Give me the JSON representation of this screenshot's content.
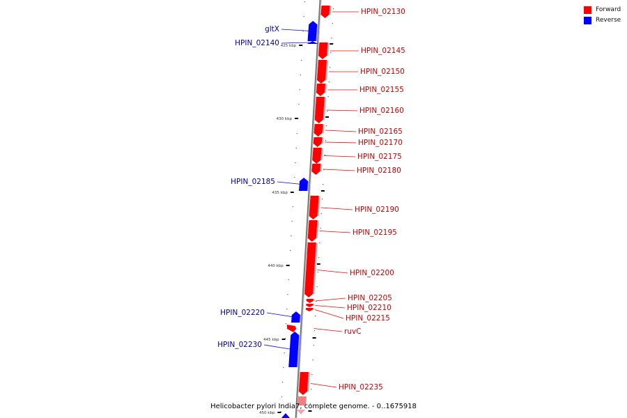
{
  "title": "Helicobacter pylori India7, complete genome. - 0..1675918",
  "legend": [
    {
      "label": "Forward",
      "color": "#ff0000"
    },
    {
      "label": "Reverse",
      "color": "#0000ff"
    }
  ],
  "colors": {
    "forward": "#ff0000",
    "reverse": "#0000ff",
    "backbone": "#808080"
  },
  "ticks": [
    {
      "label": "425 kbp",
      "kbp": 425
    },
    {
      "label": "430 kbp",
      "kbp": 430
    },
    {
      "label": "435 kbp",
      "kbp": 435
    },
    {
      "label": "440 kbp",
      "kbp": 440
    },
    {
      "label": "445 kbp",
      "kbp": 445
    },
    {
      "label": "450 kbp",
      "kbp": 450
    }
  ],
  "features": [
    {
      "name": "HPIN_02130",
      "strand": "forward"
    },
    {
      "name": "gltX",
      "strand": "reverse"
    },
    {
      "name": "HPIN_02140",
      "strand": "reverse"
    },
    {
      "name": "HPIN_02145",
      "strand": "forward"
    },
    {
      "name": "HPIN_02150",
      "strand": "forward"
    },
    {
      "name": "HPIN_02155",
      "strand": "forward"
    },
    {
      "name": "HPIN_02160",
      "strand": "forward"
    },
    {
      "name": "HPIN_02165",
      "strand": "forward"
    },
    {
      "name": "HPIN_02170",
      "strand": "forward"
    },
    {
      "name": "HPIN_02175",
      "strand": "forward"
    },
    {
      "name": "HPIN_02180",
      "strand": "forward"
    },
    {
      "name": "HPIN_02185",
      "strand": "reverse"
    },
    {
      "name": "HPIN_02190",
      "strand": "forward"
    },
    {
      "name": "HPIN_02195",
      "strand": "forward"
    },
    {
      "name": "HPIN_02200",
      "strand": "forward"
    },
    {
      "name": "HPIN_02205",
      "strand": "forward"
    },
    {
      "name": "HPIN_02210",
      "strand": "forward"
    },
    {
      "name": "HPIN_02215",
      "strand": "forward"
    },
    {
      "name": "HPIN_02220",
      "strand": "reverse"
    },
    {
      "name": "ruvC",
      "strand": "forward"
    },
    {
      "name": "HPIN_02230",
      "strand": "reverse"
    },
    {
      "name": "HPIN_02235",
      "strand": "forward"
    }
  ]
}
